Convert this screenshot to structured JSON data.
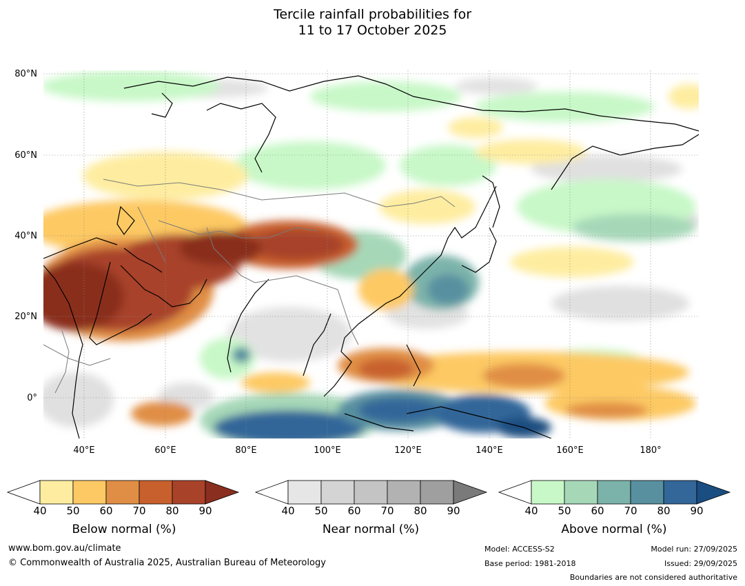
{
  "title": {
    "line1": "Tercile rainfall probabilities for",
    "line2": "11 to 17 October 2025"
  },
  "map": {
    "lat_labels": [
      "80°N",
      "60°N",
      "40°N",
      "20°N",
      "0°"
    ],
    "lon_labels": [
      "40°E",
      "60°E",
      "80°E",
      "100°E",
      "120°E",
      "140°E",
      "160°E",
      "180°"
    ],
    "lat_range": [
      -10,
      80
    ],
    "lon_range": [
      30,
      191
    ]
  },
  "colorbars": {
    "below": {
      "title": "Below normal (%)",
      "ticks": [
        "40",
        "50",
        "60",
        "70",
        "80",
        "90"
      ],
      "colors": [
        "#ffffff",
        "#feeda0",
        "#fdc964",
        "#e08e45",
        "#c8602e",
        "#a8432a",
        "#8a2e1f"
      ]
    },
    "near": {
      "title": "Near normal (%)",
      "ticks": [
        "40",
        "50",
        "60",
        "70",
        "80",
        "90"
      ],
      "colors": [
        "#ffffff",
        "#e6e6e6",
        "#d4d4d4",
        "#c4c4c4",
        "#b2b2b2",
        "#9f9f9f",
        "#7a7a7a"
      ]
    },
    "above": {
      "title": "Above normal (%)",
      "ticks": [
        "40",
        "50",
        "60",
        "70",
        "80",
        "90"
      ],
      "colors": [
        "#ffffff",
        "#c8f8c8",
        "#a6d8b8",
        "#7bb3aa",
        "#5890a0",
        "#336699",
        "#1a4d80"
      ]
    }
  },
  "footer": {
    "website": "www.bom.gov.au/climate",
    "copyright": "© Commonwealth of Australia 2025, Australian Bureau of Meteorology",
    "model": "Model: ACCESS-S2",
    "base_period": "Base period: 1981-2018",
    "model_run": "Model run: 27/09/2025",
    "issued": "Issued: 29/09/2025",
    "disclaimer": "Boundaries are not considered authoritative"
  }
}
